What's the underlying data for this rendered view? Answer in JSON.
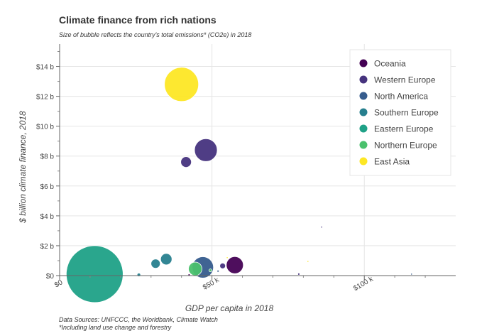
{
  "title": "Climate finance from rich nations",
  "subtitle": "Size of bubble reflects the country's total emissions* (CO2e) in 2018",
  "footnotes": {
    "sources": "Data Sources: UNFCCC, the Worldbank, Climate Watch",
    "note": "*Including land use change and forestry"
  },
  "chart_data": {
    "type": "scatter",
    "title": "Climate finance from rich nations",
    "xlabel": "GDP per capita in 2018",
    "ylabel": "$ billion climate finance, 2018",
    "xlim": [
      0,
      130000
    ],
    "ylim": [
      0,
      15.5
    ],
    "x_ticks": [
      {
        "value": 0,
        "label": "$0"
      },
      {
        "value": 50000,
        "label": "$50 k"
      },
      {
        "value": 100000,
        "label": "$100 k"
      }
    ],
    "y_ticks": [
      {
        "value": 0,
        "label": "$0"
      },
      {
        "value": 2,
        "label": "$2 b"
      },
      {
        "value": 4,
        "label": "$4 b"
      },
      {
        "value": 6,
        "label": "$6 b"
      },
      {
        "value": 8,
        "label": "$8 b"
      },
      {
        "value": 10,
        "label": "$10 b"
      },
      {
        "value": 12,
        "label": "$12 b"
      },
      {
        "value": 14,
        "label": "$14 b"
      }
    ],
    "grid": true,
    "legend_position": "top-right",
    "series": [
      {
        "name": "Oceania",
        "color": "#440154",
        "points": [
          {
            "x": 57500,
            "y": 0.7,
            "r": 12
          },
          {
            "x": 42500,
            "y": 0.05,
            "r": 1.5
          }
        ]
      },
      {
        "name": "Western Europe",
        "color": "#46337e",
        "points": [
          {
            "x": 48000,
            "y": 8.4,
            "r": 16
          },
          {
            "x": 41500,
            "y": 7.6,
            "r": 7.5
          },
          {
            "x": 53500,
            "y": 0.65,
            "r": 4
          },
          {
            "x": 86000,
            "y": 3.25,
            "r": 1.2
          },
          {
            "x": 78500,
            "y": 0.1,
            "r": 1.5
          }
        ]
      },
      {
        "name": "North America",
        "color": "#365c8d",
        "points": [
          {
            "x": 47000,
            "y": 0.55,
            "r": 15
          },
          {
            "x": 52000,
            "y": 0.3,
            "r": 1.5
          },
          {
            "x": 115500,
            "y": 0.1,
            "r": 1.2
          }
        ]
      },
      {
        "name": "Southern Europe",
        "color": "#277f8e",
        "points": [
          {
            "x": 35000,
            "y": 1.1,
            "r": 8
          },
          {
            "x": 31500,
            "y": 0.8,
            "r": 6.5
          },
          {
            "x": 26000,
            "y": 0.05,
            "r": 2.5
          }
        ]
      },
      {
        "name": "Eastern Europe",
        "color": "#1fa187",
        "points": [
          {
            "x": 11500,
            "y": 0.1,
            "r": 40
          }
        ]
      },
      {
        "name": "Northern Europe",
        "color": "#4ac16d",
        "points": [
          {
            "x": 44500,
            "y": 0.45,
            "r": 9.5
          },
          {
            "x": 49500,
            "y": 0.35,
            "r": 2
          }
        ]
      },
      {
        "name": "East Asia",
        "color": "#fde725",
        "points": [
          {
            "x": 40000,
            "y": 12.8,
            "r": 24
          },
          {
            "x": 55000,
            "y": 1.2,
            "r": 1.2
          },
          {
            "x": 81500,
            "y": 0.95,
            "r": 1.2
          }
        ]
      }
    ]
  }
}
